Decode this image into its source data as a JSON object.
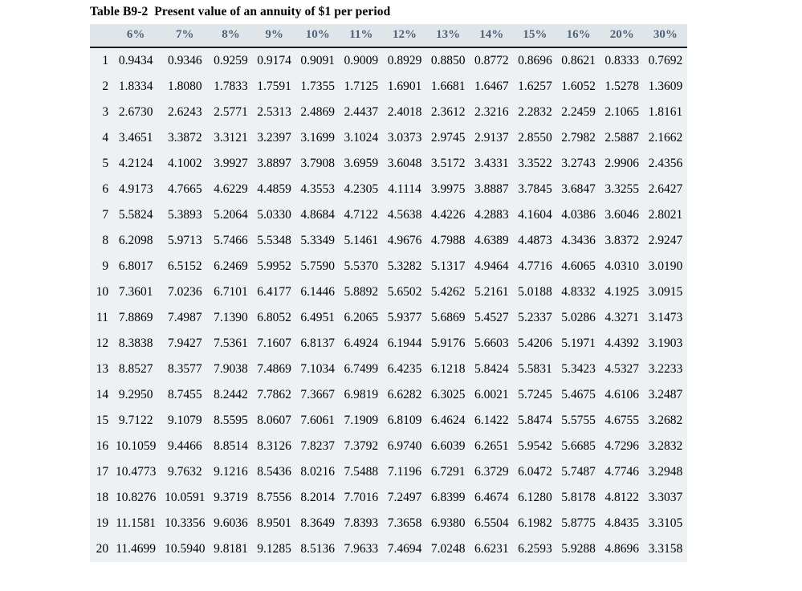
{
  "title": "Table B9-2  Present value of an annuity of $1 per period",
  "table": {
    "columns": [
      "6%",
      "7%",
      "8%",
      "9%",
      "10%",
      "11%",
      "12%",
      "13%",
      "14%",
      "15%",
      "16%",
      "20%",
      "30%"
    ],
    "rows": [
      {
        "period": "1",
        "values": [
          "0.9434",
          "0.9346",
          "0.9259",
          "0.9174",
          "0.9091",
          "0.9009",
          "0.8929",
          "0.8850",
          "0.8772",
          "0.8696",
          "0.8621",
          "0.8333",
          "0.7692"
        ]
      },
      {
        "period": "2",
        "values": [
          "1.8334",
          "1.8080",
          "1.7833",
          "1.7591",
          "1.7355",
          "1.7125",
          "1.6901",
          "1.6681",
          "1.6467",
          "1.6257",
          "1.6052",
          "1.5278",
          "1.3609"
        ]
      },
      {
        "period": "3",
        "values": [
          "2.6730",
          "2.6243",
          "2.5771",
          "2.5313",
          "2.4869",
          "2.4437",
          "2.4018",
          "2.3612",
          "2.3216",
          "2.2832",
          "2.2459",
          "2.1065",
          "1.8161"
        ]
      },
      {
        "period": "4",
        "values": [
          "3.4651",
          "3.3872",
          "3.3121",
          "3.2397",
          "3.1699",
          "3.1024",
          "3.0373",
          "2.9745",
          "2.9137",
          "2.8550",
          "2.7982",
          "2.5887",
          "2.1662"
        ]
      },
      {
        "period": "5",
        "values": [
          "4.2124",
          "4.1002",
          "3.9927",
          "3.8897",
          "3.7908",
          "3.6959",
          "3.6048",
          "3.5172",
          "3.4331",
          "3.3522",
          "3.2743",
          "2.9906",
          "2.4356"
        ]
      },
      {
        "period": "6",
        "values": [
          "4.9173",
          "4.7665",
          "4.6229",
          "4.4859",
          "4.3553",
          "4.2305",
          "4.1114",
          "3.9975",
          "3.8887",
          "3.7845",
          "3.6847",
          "3.3255",
          "2.6427"
        ]
      },
      {
        "period": "7",
        "values": [
          "5.5824",
          "5.3893",
          "5.2064",
          "5.0330",
          "4.8684",
          "4.7122",
          "4.5638",
          "4.4226",
          "4.2883",
          "4.1604",
          "4.0386",
          "3.6046",
          "2.8021"
        ]
      },
      {
        "period": "8",
        "values": [
          "6.2098",
          "5.9713",
          "5.7466",
          "5.5348",
          "5.3349",
          "5.1461",
          "4.9676",
          "4.7988",
          "4.6389",
          "4.4873",
          "4.3436",
          "3.8372",
          "2.9247"
        ]
      },
      {
        "period": "9",
        "values": [
          "6.8017",
          "6.5152",
          "6.2469",
          "5.9952",
          "5.7590",
          "5.5370",
          "5.3282",
          "5.1317",
          "4.9464",
          "4.7716",
          "4.6065",
          "4.0310",
          "3.0190"
        ]
      },
      {
        "period": "10",
        "values": [
          "7.3601",
          "7.0236",
          "6.7101",
          "6.4177",
          "6.1446",
          "5.8892",
          "5.6502",
          "5.4262",
          "5.2161",
          "5.0188",
          "4.8332",
          "4.1925",
          "3.0915"
        ]
      },
      {
        "period": "11",
        "values": [
          "7.8869",
          "7.4987",
          "7.1390",
          "6.8052",
          "6.4951",
          "6.2065",
          "5.9377",
          "5.6869",
          "5.4527",
          "5.2337",
          "5.0286",
          "4.3271",
          "3.1473"
        ]
      },
      {
        "period": "12",
        "values": [
          "8.3838",
          "7.9427",
          "7.5361",
          "7.1607",
          "6.8137",
          "6.4924",
          "6.1944",
          "5.9176",
          "5.6603",
          "5.4206",
          "5.1971",
          "4.4392",
          "3.1903"
        ]
      },
      {
        "period": "13",
        "values": [
          "8.8527",
          "8.3577",
          "7.9038",
          "7.4869",
          "7.1034",
          "6.7499",
          "6.4235",
          "6.1218",
          "5.8424",
          "5.5831",
          "5.3423",
          "4.5327",
          "3.2233"
        ]
      },
      {
        "period": "14",
        "values": [
          "9.2950",
          "8.7455",
          "8.2442",
          "7.7862",
          "7.3667",
          "6.9819",
          "6.6282",
          "6.3025",
          "6.0021",
          "5.7245",
          "5.4675",
          "4.6106",
          "3.2487"
        ]
      },
      {
        "period": "15",
        "values": [
          "9.7122",
          "9.1079",
          "8.5595",
          "8.0607",
          "7.6061",
          "7.1909",
          "6.8109",
          "6.4624",
          "6.1422",
          "5.8474",
          "5.5755",
          "4.6755",
          "3.2682"
        ]
      },
      {
        "period": "16",
        "values": [
          "10.1059",
          "9.4466",
          "8.8514",
          "8.3126",
          "7.8237",
          "7.3792",
          "6.9740",
          "6.6039",
          "6.2651",
          "5.9542",
          "5.6685",
          "4.7296",
          "3.2832"
        ]
      },
      {
        "period": "17",
        "values": [
          "10.4773",
          "9.7632",
          "9.1216",
          "8.5436",
          "8.0216",
          "7.5488",
          "7.1196",
          "6.7291",
          "6.3729",
          "6.0472",
          "5.7487",
          "4.7746",
          "3.2948"
        ]
      },
      {
        "period": "18",
        "values": [
          "10.8276",
          "10.0591",
          "9.3719",
          "8.7556",
          "8.2014",
          "7.7016",
          "7.2497",
          "6.8399",
          "6.4674",
          "6.1280",
          "5.8178",
          "4.8122",
          "3.3037"
        ]
      },
      {
        "period": "19",
        "values": [
          "11.1581",
          "10.3356",
          "9.6036",
          "8.9501",
          "8.3649",
          "7.8393",
          "7.3658",
          "6.9380",
          "6.5504",
          "6.1982",
          "5.8775",
          "4.8435",
          "3.3105"
        ]
      },
      {
        "period": "20",
        "values": [
          "11.4699",
          "10.5940",
          "9.8181",
          "9.1285",
          "8.5136",
          "7.9633",
          "7.4694",
          "7.0248",
          "6.6231",
          "6.2593",
          "5.9288",
          "4.8696",
          "3.3158"
        ]
      }
    ]
  },
  "colors": {
    "header_background": "#e0e5e9",
    "header_text": "#4e6378",
    "body_background": "#edf1f3",
    "header_rule": "#1c1c1c",
    "body_text": "#000000",
    "page_background": "#ffffff"
  }
}
